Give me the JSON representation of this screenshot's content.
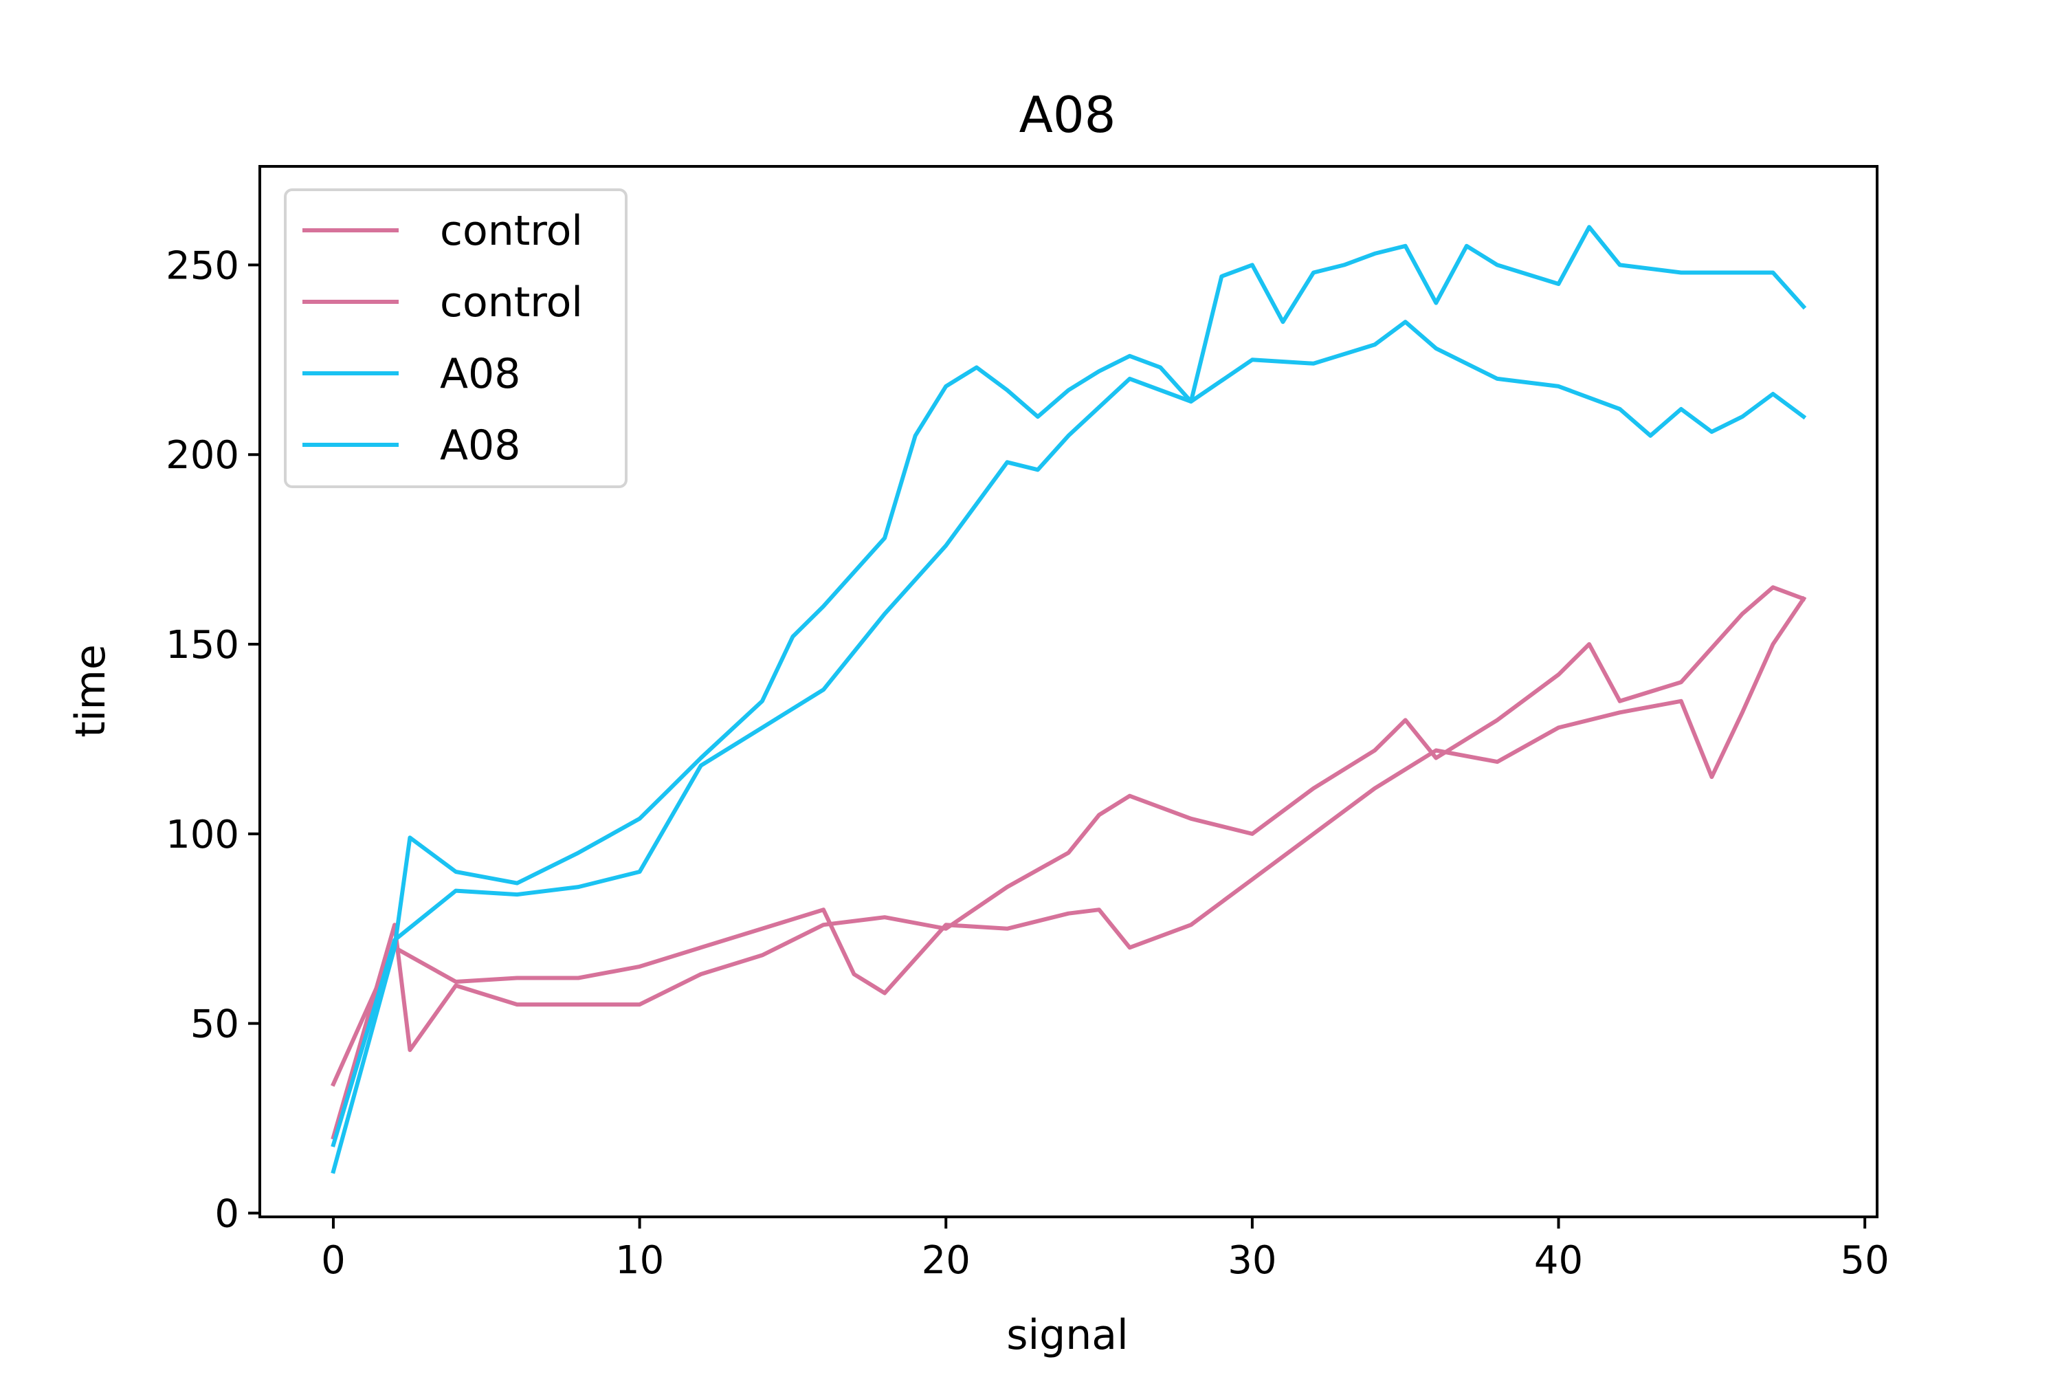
{
  "chart_data": {
    "type": "line",
    "title": "A08",
    "xlabel": "signal",
    "ylabel": "time",
    "xlim": [
      -2.4,
      50.4
    ],
    "ylim": [
      -1,
      276
    ],
    "xticks": [
      0,
      10,
      20,
      30,
      40,
      50
    ],
    "yticks": [
      0,
      50,
      100,
      150,
      200,
      250
    ],
    "grid": false,
    "legend_position": "top-left",
    "series": [
      {
        "name": "control",
        "color": "#d6729a",
        "x": [
          0,
          2,
          4,
          6,
          8,
          10,
          12,
          14,
          16,
          17,
          18,
          20,
          22,
          24,
          25,
          26,
          28,
          30,
          32,
          34,
          36,
          38,
          40,
          42,
          44,
          45,
          46,
          47,
          48
        ],
        "y": [
          34,
          70,
          61,
          62,
          62,
          65,
          70,
          75,
          80,
          63,
          58,
          76,
          75,
          79,
          80,
          70,
          76,
          88,
          100,
          112,
          122,
          119,
          128,
          132,
          135,
          115,
          132,
          150,
          162
        ]
      },
      {
        "name": "control",
        "color": "#d6729a",
        "x": [
          0,
          2,
          2.5,
          4,
          6,
          8,
          10,
          12,
          14,
          16,
          18,
          20,
          22,
          24,
          25,
          26,
          28,
          30,
          32,
          34,
          35,
          36,
          38,
          40,
          41,
          42,
          44,
          46,
          47,
          48
        ],
        "y": [
          20,
          76,
          43,
          60,
          55,
          55,
          55,
          63,
          68,
          76,
          78,
          75,
          86,
          95,
          105,
          110,
          104,
          100,
          112,
          122,
          130,
          120,
          130,
          142,
          150,
          135,
          140,
          158,
          165,
          162
        ]
      },
      {
        "name": "A08",
        "color": "#1ac2f2",
        "x": [
          0,
          2,
          2.5,
          4,
          6,
          8,
          10,
          11,
          12,
          14,
          15,
          16,
          18,
          19,
          20,
          21,
          22,
          23,
          24,
          25,
          26,
          27,
          28,
          29,
          30,
          31,
          32,
          33,
          34,
          35,
          36,
          37,
          38,
          40,
          41,
          42,
          44,
          46,
          47,
          48
        ],
        "y": [
          11,
          70,
          99,
          90,
          87,
          95,
          104,
          112,
          120,
          135,
          152,
          160,
          178,
          205,
          218,
          223,
          217,
          210,
          217,
          222,
          226,
          223,
          214,
          247,
          250,
          235,
          248,
          250,
          253,
          255,
          240,
          255,
          250,
          245,
          260,
          250,
          248,
          248,
          248,
          239
        ]
      },
      {
        "name": "A08",
        "color": "#1ac2f2",
        "x": [
          0,
          2,
          4,
          6,
          8,
          10,
          12,
          14,
          16,
          18,
          20,
          22,
          23,
          24,
          26,
          28,
          30,
          32,
          34,
          35,
          36,
          38,
          40,
          42,
          43,
          44,
          45,
          46,
          47,
          48
        ],
        "y": [
          18,
          72,
          85,
          84,
          86,
          90,
          118,
          128,
          138,
          158,
          176,
          198,
          196,
          205,
          220,
          214,
          225,
          224,
          229,
          235,
          228,
          220,
          218,
          212,
          205,
          212,
          206,
          210,
          216,
          210
        ]
      }
    ]
  }
}
